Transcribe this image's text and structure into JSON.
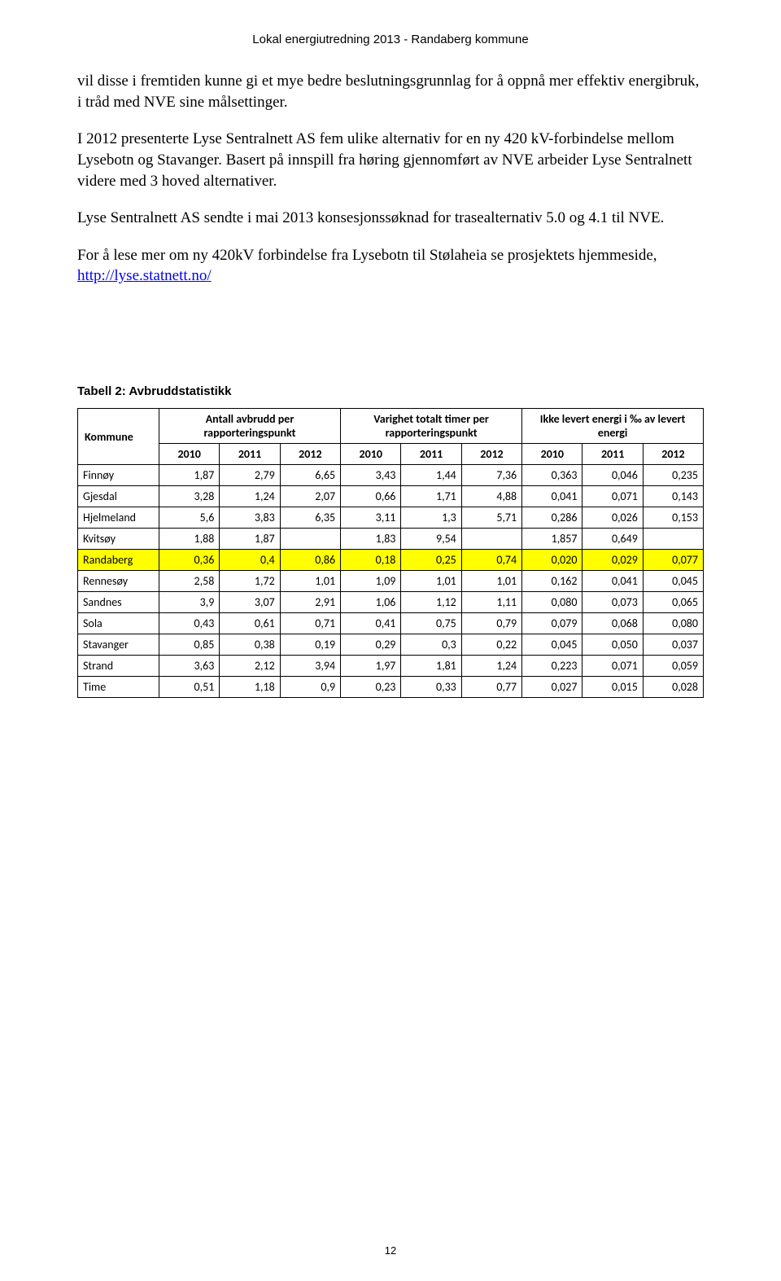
{
  "header": {
    "title": "Lokal energiutredning 2013  -  Randaberg kommune"
  },
  "paragraphs": {
    "p1": "vil disse i fremtiden kunne gi et mye bedre beslutningsgrunnlag for å oppnå mer effektiv energibruk, i tråd med NVE sine målsettinger.",
    "p2": "I 2012 presenterte Lyse Sentralnett AS fem ulike alternativ for en ny 420 kV-forbindelse mellom Lysebotn og Stavanger. Basert på innspill fra høring gjennomført av NVE arbeider Lyse Sentralnett videre med 3 hoved alternativer.",
    "p3": "Lyse Sentralnett AS sendte i mai 2013 konsesjonssøknad for trasealternativ 5.0 og 4.1 til NVE.",
    "p4_before_link": "For å lese mer om ny 420kV forbindelse fra Lysebotn til Stølaheia se prosjektets hjemmeside, ",
    "p4_link_text": "http://lyse.statnett.no/",
    "p4_link_href": "http://lyse.statnett.no/"
  },
  "table": {
    "caption": "Tabell 2: Avbruddstatistikk",
    "head_kommune": "Kommune",
    "group_headers": [
      "Antall avbrudd per rapporteringspunkt",
      "Varighet totalt timer per rapporteringspunkt",
      "Ikke levert energi i ‰ av levert energi"
    ],
    "years": [
      "2010",
      "2011",
      "2012",
      "2010",
      "2011",
      "2012",
      "2010",
      "2011",
      "2012"
    ],
    "rows": [
      {
        "name": "Finnøy",
        "highlight": false,
        "cells": [
          "1,87",
          "2,79",
          "6,65",
          "3,43",
          "1,44",
          "7,36",
          "0,363",
          "0,046",
          "0,235"
        ]
      },
      {
        "name": "Gjesdal",
        "highlight": false,
        "cells": [
          "3,28",
          "1,24",
          "2,07",
          "0,66",
          "1,71",
          "4,88",
          "0,041",
          "0,071",
          "0,143"
        ]
      },
      {
        "name": "Hjelmeland",
        "highlight": false,
        "cells": [
          "5,6",
          "3,83",
          "6,35",
          "3,11",
          "1,3",
          "5,71",
          "0,286",
          "0,026",
          "0,153"
        ]
      },
      {
        "name": "Kvitsøy",
        "highlight": false,
        "cells": [
          "1,88",
          "1,87",
          "",
          "1,83",
          "9,54",
          "",
          "1,857",
          "0,649",
          ""
        ]
      },
      {
        "name": "Randaberg",
        "highlight": true,
        "cells": [
          "0,36",
          "0,4",
          "0,86",
          "0,18",
          "0,25",
          "0,74",
          "0,020",
          "0,029",
          "0,077"
        ]
      },
      {
        "name": "Rennesøy",
        "highlight": false,
        "cells": [
          "2,58",
          "1,72",
          "1,01",
          "1,09",
          "1,01",
          "1,01",
          "0,162",
          "0,041",
          "0,045"
        ]
      },
      {
        "name": "Sandnes",
        "highlight": false,
        "cells": [
          "3,9",
          "3,07",
          "2,91",
          "1,06",
          "1,12",
          "1,11",
          "0,080",
          "0,073",
          "0,065"
        ]
      },
      {
        "name": "Sola",
        "highlight": false,
        "cells": [
          "0,43",
          "0,61",
          "0,71",
          "0,41",
          "0,75",
          "0,79",
          "0,079",
          "0,068",
          "0,080"
        ]
      },
      {
        "name": "Stavanger",
        "highlight": false,
        "cells": [
          "0,85",
          "0,38",
          "0,19",
          "0,29",
          "0,3",
          "0,22",
          "0,045",
          "0,050",
          "0,037"
        ]
      },
      {
        "name": "Strand",
        "highlight": false,
        "cells": [
          "3,63",
          "2,12",
          "3,94",
          "1,97",
          "1,81",
          "1,24",
          "0,223",
          "0,071",
          "0,059"
        ]
      },
      {
        "name": "Time",
        "highlight": false,
        "cells": [
          "0,51",
          "1,18",
          "0,9",
          "0,23",
          "0,33",
          "0,77",
          "0,027",
          "0,015",
          "0,028"
        ]
      }
    ]
  },
  "pageNumber": "12",
  "styling": {
    "highlight_color": "#ffff00",
    "border_color": "#000000",
    "link_color": "#0000ff",
    "body_font_family": "Times New Roman",
    "table_font_family": "Calibri",
    "column_widths_pct": [
      13,
      9.67,
      9.67,
      9.67,
      9.67,
      9.67,
      9.67,
      9.67,
      9.67,
      9.67
    ]
  }
}
